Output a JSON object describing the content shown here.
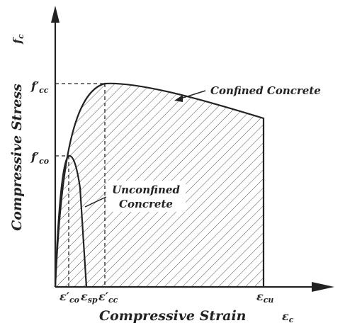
{
  "axes": {
    "y_label": "Compressive Stress",
    "y_symbol": {
      "base": "f",
      "sub": "c"
    },
    "x_label": "Compressive Strain",
    "x_symbol": {
      "base": "ε",
      "sub": "c"
    }
  },
  "stress_marks": [
    {
      "base": "f′",
      "sub": "cc"
    },
    {
      "base": "f′",
      "sub": "co"
    }
  ],
  "strain_marks": [
    {
      "base": "ε′",
      "sub": "co"
    },
    {
      "base": "ε",
      "sub": "sp"
    },
    {
      "base": "ε′",
      "sub": "cc"
    },
    {
      "base": "ε",
      "sub": "cu"
    }
  ],
  "curves": {
    "confined": "Confined Concrete",
    "unconfined": [
      "Unconfined",
      "Concrete"
    ]
  }
}
